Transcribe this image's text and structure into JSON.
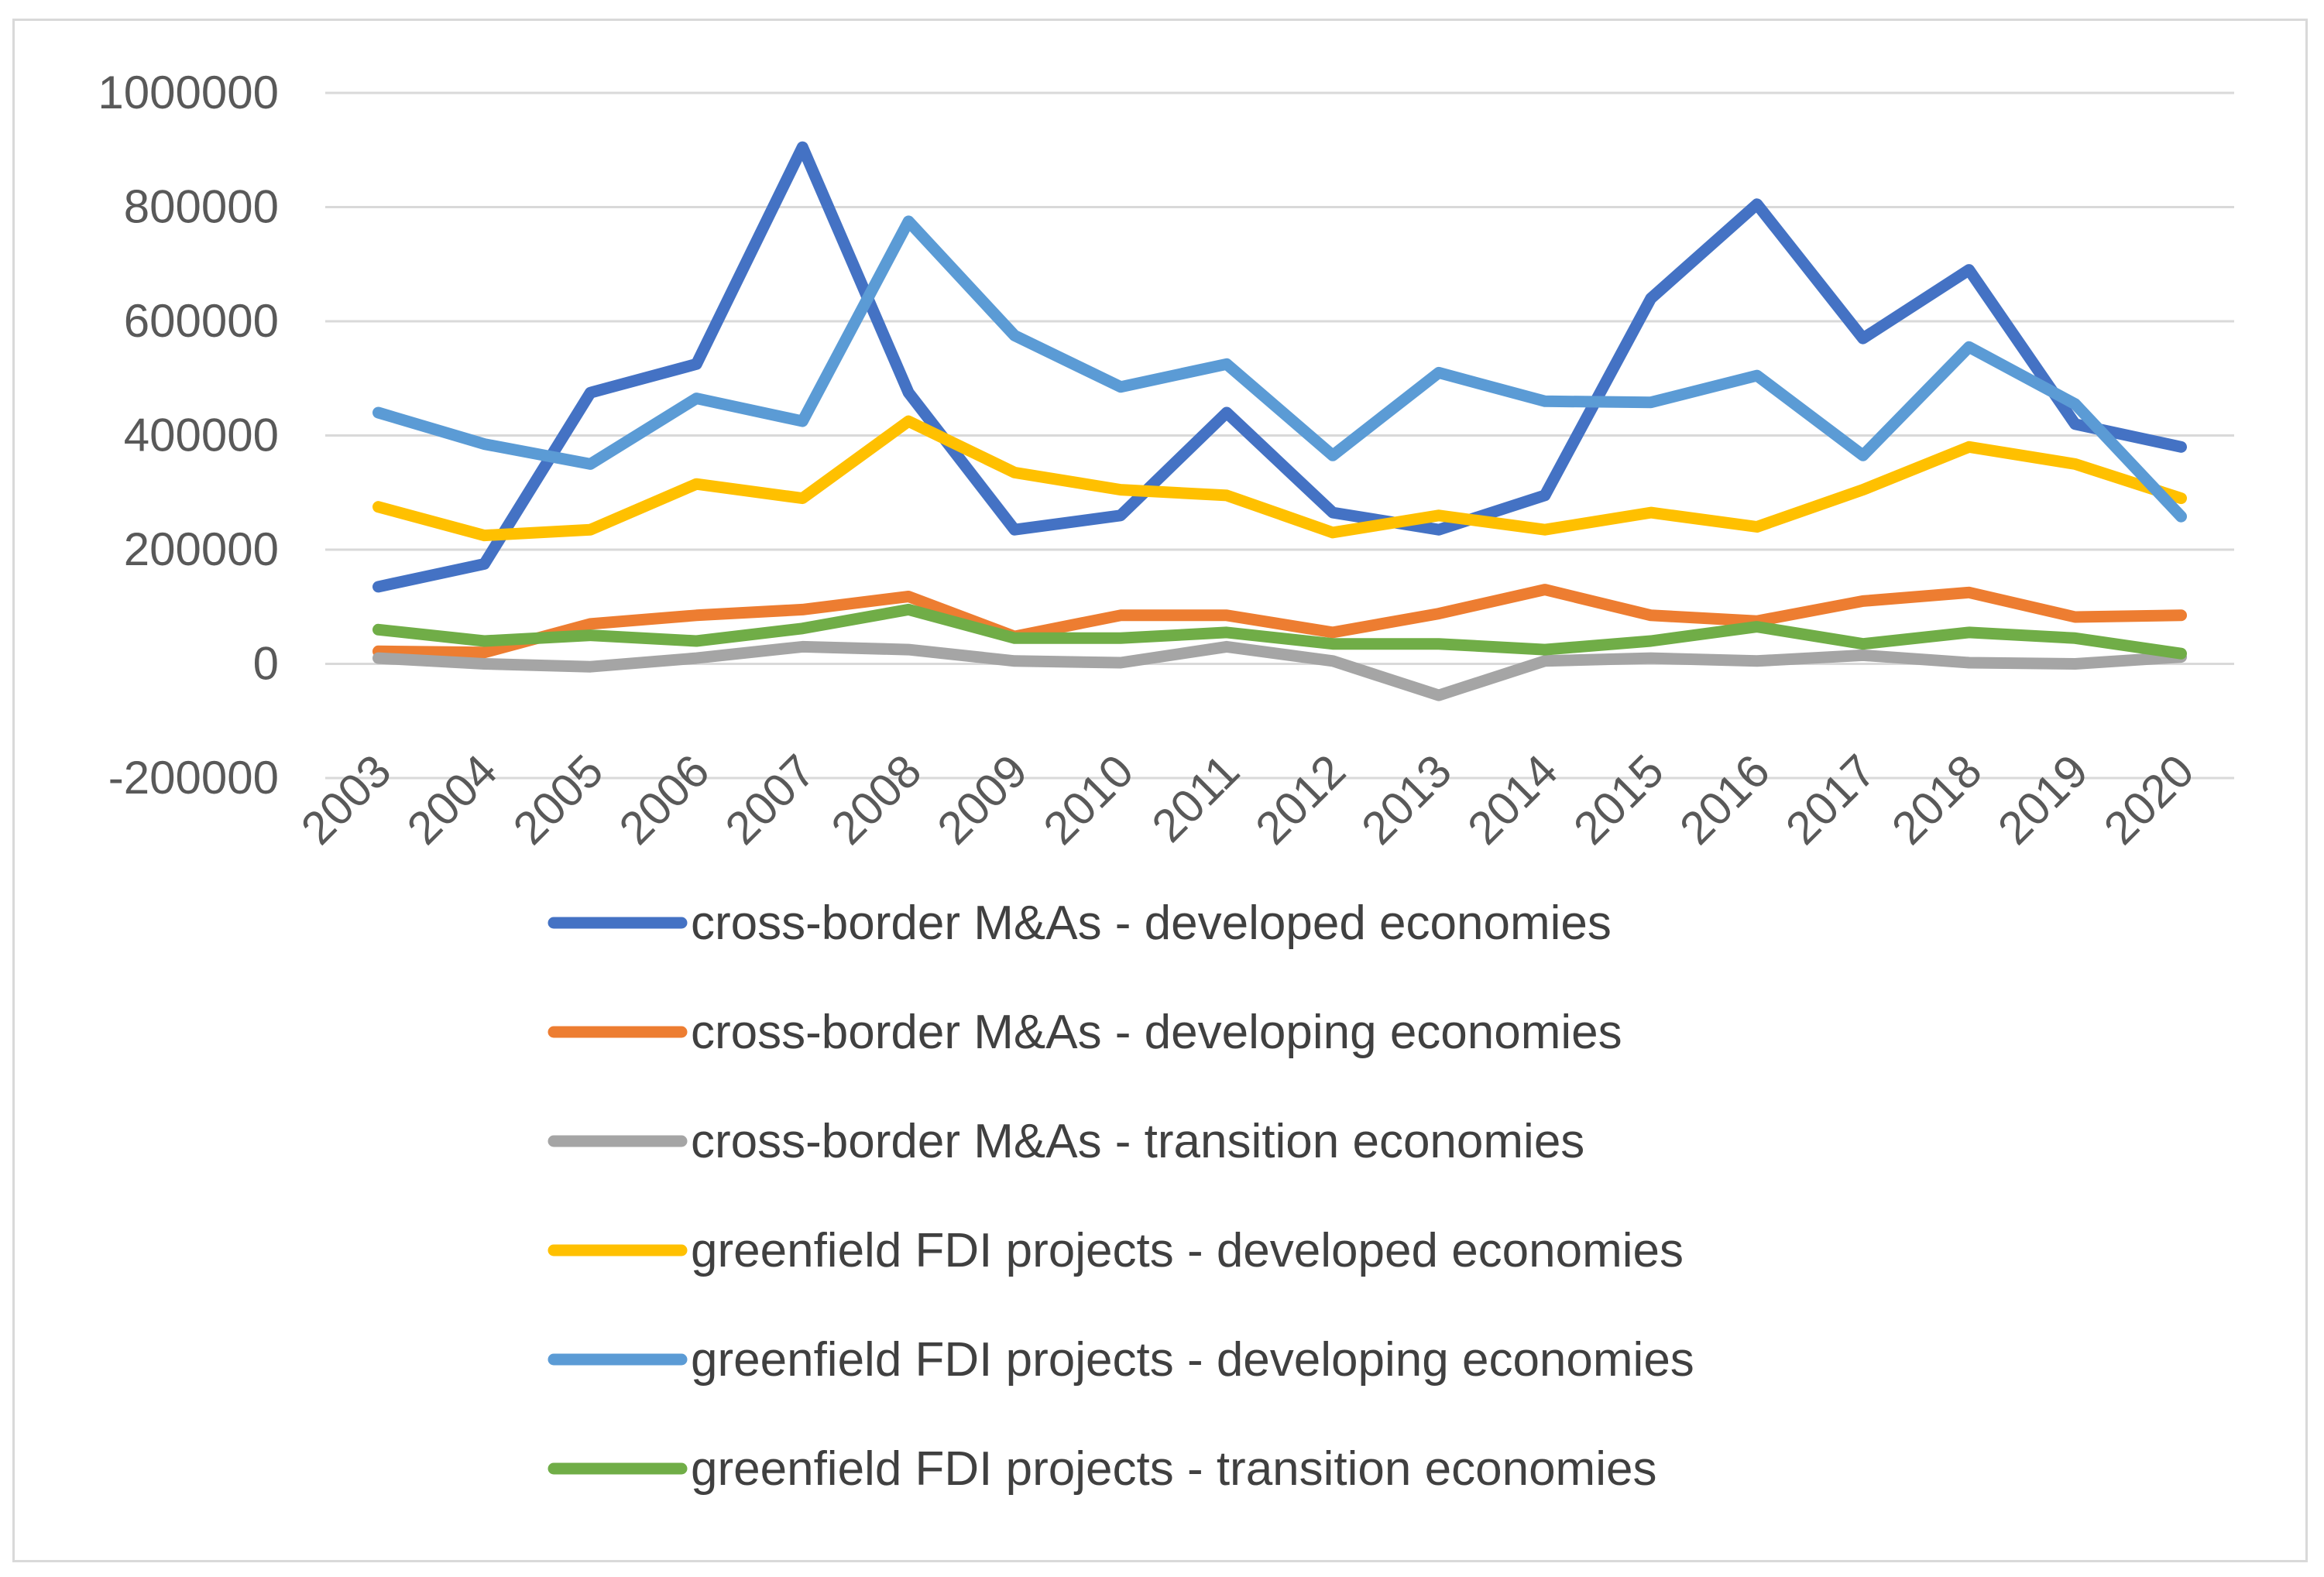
{
  "chart_data": {
    "type": "line",
    "title": "",
    "xlabel": "",
    "ylabel": "",
    "ylim": [
      -200000,
      1000000
    ],
    "grid": true,
    "legend_position": "bottom",
    "y_ticks": [
      "1000000",
      "800000",
      "600000",
      "400000",
      "200000",
      "0",
      "-200000"
    ],
    "y_tick_values": [
      1000000,
      800000,
      600000,
      400000,
      200000,
      0,
      -200000
    ],
    "categories": [
      "2003",
      "2004",
      "2005",
      "2006",
      "2007",
      "2008",
      "2009",
      "2010",
      "2011",
      "2012",
      "2013",
      "2014",
      "2015",
      "2016",
      "2017",
      "2018",
      "2019",
      "2020"
    ],
    "series": [
      {
        "name": "cross-border M&As - developed economies",
        "color": "#4472c4",
        "values": [
          135000,
          175000,
          475000,
          525000,
          905000,
          475000,
          235000,
          260000,
          440000,
          265000,
          235000,
          295000,
          640000,
          805000,
          570000,
          690000,
          420000,
          380000
        ]
      },
      {
        "name": "cross-border M&As - developing economies",
        "color": "#ed7d31",
        "values": [
          22000,
          20000,
          70000,
          85000,
          95000,
          118000,
          48000,
          85000,
          85000,
          55000,
          88000,
          130000,
          85000,
          75000,
          110000,
          125000,
          82000,
          85000
        ]
      },
      {
        "name": "cross-border M&As - transition economies",
        "color": "#a5a5a5",
        "values": [
          10000,
          0,
          -5000,
          10000,
          30000,
          25000,
          5000,
          2000,
          30000,
          5000,
          -55000,
          5000,
          10000,
          5000,
          15000,
          2000,
          0,
          12000
        ]
      },
      {
        "name": "greenfield FDI projects - developed economies",
        "color": "#ffc000",
        "values": [
          275000,
          225000,
          235000,
          315000,
          290000,
          425000,
          335000,
          305000,
          295000,
          230000,
          260000,
          235000,
          265000,
          240000,
          305000,
          380000,
          350000,
          290000
        ]
      },
      {
        "name": "greenfield FDI projects - developing economies",
        "color": "#5b9bd5",
        "values": [
          440000,
          385000,
          350000,
          465000,
          425000,
          775000,
          575000,
          485000,
          525000,
          365000,
          510000,
          460000,
          458000,
          505000,
          365000,
          555000,
          455000,
          258000
        ]
      },
      {
        "name": "greenfield FDI projects - transition economies",
        "color": "#70ad47",
        "values": [
          60000,
          40000,
          50000,
          40000,
          62000,
          95000,
          45000,
          45000,
          55000,
          35000,
          35000,
          25000,
          40000,
          65000,
          35000,
          55000,
          45000,
          18000
        ]
      }
    ]
  }
}
